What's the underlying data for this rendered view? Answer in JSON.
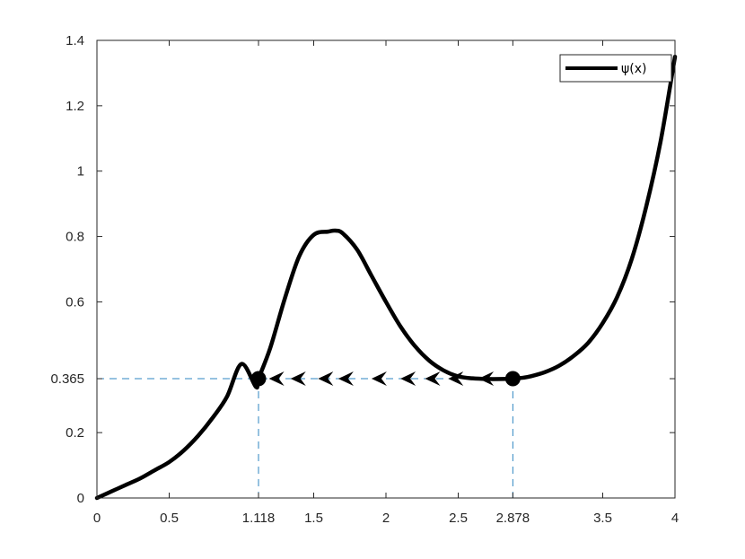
{
  "chart_data": {
    "type": "line",
    "title": "",
    "xlabel": "",
    "ylabel": "",
    "xlim": [
      0,
      4
    ],
    "ylim": [
      0,
      1.4
    ],
    "grid": false,
    "legend_position": "top-right",
    "xticks": [
      {
        "value": 0,
        "label": "0"
      },
      {
        "value": 0.5,
        "label": "0.5"
      },
      {
        "value": 1.118,
        "label": "1.118"
      },
      {
        "value": 1.5,
        "label": "1.5"
      },
      {
        "value": 2,
        "label": "2"
      },
      {
        "value": 2.5,
        "label": "2.5"
      },
      {
        "value": 2.878,
        "label": "2.878"
      },
      {
        "value": 3.5,
        "label": "3.5"
      },
      {
        "value": 4,
        "label": "4"
      }
    ],
    "yticks": [
      {
        "value": 0,
        "label": "0"
      },
      {
        "value": 0.2,
        "label": "0.2"
      },
      {
        "value": 0.365,
        "label": "0.365"
      },
      {
        "value": 0.6,
        "label": "0.6"
      },
      {
        "value": 0.8,
        "label": "0.8"
      },
      {
        "value": 1,
        "label": "1"
      },
      {
        "value": 1.2,
        "label": "1.2"
      },
      {
        "value": 1.4,
        "label": "1.4"
      }
    ],
    "series": [
      {
        "name": "ψ(x)",
        "color": "#000000",
        "x": [
          0,
          0.1,
          0.2,
          0.3,
          0.4,
          0.5,
          0.6,
          0.7,
          0.8,
          0.9,
          1.0,
          1.1,
          1.118,
          1.2,
          1.3,
          1.4,
          1.5,
          1.6,
          1.65,
          1.7,
          1.8,
          1.9,
          2.0,
          2.1,
          2.2,
          2.3,
          2.4,
          2.5,
          2.6,
          2.7,
          2.8,
          2.878,
          2.95,
          3.0,
          3.1,
          3.2,
          3.3,
          3.4,
          3.5,
          3.6,
          3.7,
          3.8,
          3.9,
          4.0
        ],
        "y": [
          0.0,
          0.02,
          0.04,
          0.06,
          0.085,
          0.11,
          0.145,
          0.19,
          0.245,
          0.31,
          0.41,
          0.34,
          0.365,
          0.46,
          0.61,
          0.74,
          0.805,
          0.815,
          0.818,
          0.81,
          0.76,
          0.68,
          0.6,
          0.525,
          0.465,
          0.42,
          0.39,
          0.372,
          0.366,
          0.364,
          0.364,
          0.365,
          0.368,
          0.372,
          0.385,
          0.405,
          0.435,
          0.475,
          0.535,
          0.615,
          0.73,
          0.89,
          1.09,
          1.35
        ]
      }
    ],
    "fixed_points": [
      {
        "x": 1.118,
        "y": 0.365
      },
      {
        "x": 2.878,
        "y": 0.365
      }
    ],
    "flow_arrows": {
      "y": 0.365,
      "direction": "left",
      "x": [
        1.19,
        1.34,
        1.53,
        1.67,
        1.9,
        2.1,
        2.27,
        2.43,
        2.64
      ]
    },
    "guide_color": "#2e86c1"
  }
}
